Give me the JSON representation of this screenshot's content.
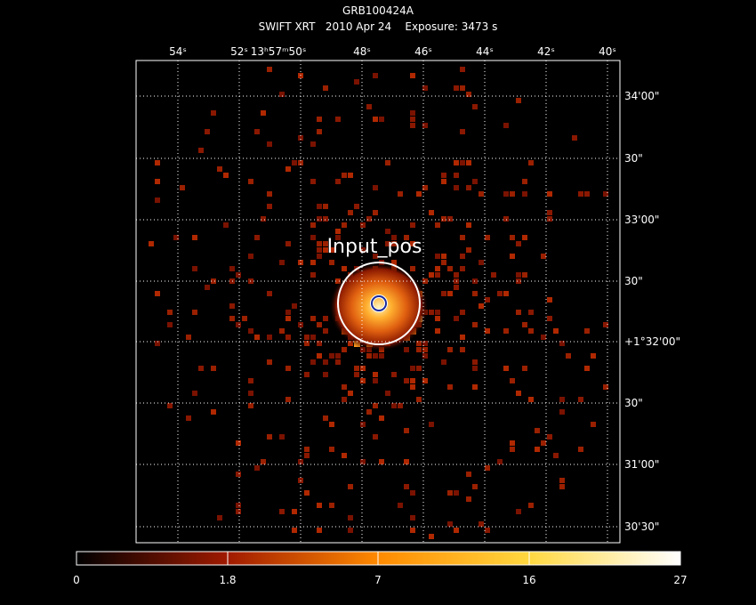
{
  "header": {
    "title": "GRB100424A",
    "subtitle": "SWIFT XRT   2010 Apr 24    Exposure: 3473 s"
  },
  "ra_labels": [
    "54ˢ",
    "52ˢ",
    "13ʰ57ᵐ50ˢ",
    "48ˢ",
    "46ˢ",
    "44ˢ",
    "42ˢ",
    "40ˢ"
  ],
  "dec_labels": [
    "34'00\"",
    "30\"",
    "33'00\"",
    "30\"",
    "+1°32'00\"",
    "30\"",
    "31'00\"",
    "30'30\""
  ],
  "annotation": "Input_pos",
  "colorbar": {
    "labels": [
      "0",
      "1.8",
      "7",
      "16",
      "27"
    ]
  }
}
